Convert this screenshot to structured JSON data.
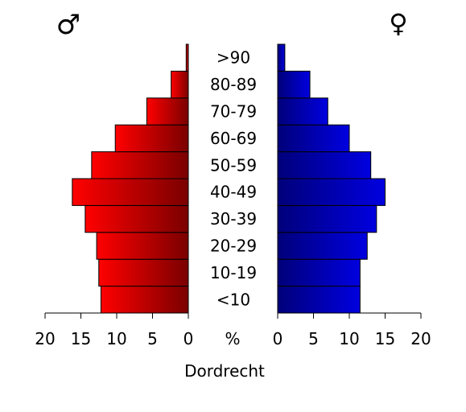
{
  "chart_data": {
    "type": "bar",
    "subtype": "population-pyramid",
    "categories": [
      "<10",
      "10-19",
      "20-29",
      "30-39",
      "40-49",
      "50-59",
      "60-69",
      "70-79",
      "80-89",
      ">90"
    ],
    "series": [
      {
        "name": "♂",
        "values": [
          12.2,
          12.5,
          12.8,
          14.4,
          16.2,
          13.5,
          10.2,
          5.8,
          2.4,
          0.3
        ],
        "color": "#ff0000",
        "color_dark": "#7a0000"
      },
      {
        "name": "♀",
        "values": [
          11.5,
          11.5,
          12.5,
          13.8,
          15.0,
          13.0,
          10.0,
          7.0,
          4.5,
          1.0
        ],
        "color": "#0000e0",
        "color_dark": "#00007a"
      }
    ],
    "xlim": [
      0,
      20
    ],
    "x_ticks": [
      "20",
      "15",
      "10",
      "5",
      "0"
    ],
    "x_ticks_right": [
      "0",
      "5",
      "10",
      "15",
      "20"
    ],
    "center_unit": "%",
    "title": "",
    "xlabel": "Dordrecht",
    "grid": false,
    "legend": "none"
  }
}
